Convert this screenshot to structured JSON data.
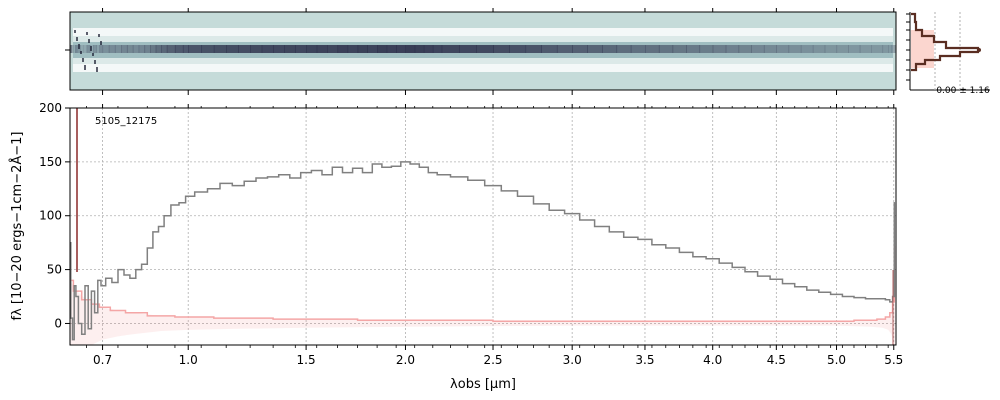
{
  "chart_data": [
    {
      "type": "heatmap",
      "panel": "2d-spectrum",
      "colors": {
        "background": "#c5dbd9",
        "core": "#2c2f4a",
        "mid": "#6f9aa1",
        "light": "#f4f8f8",
        "dark_pixel": "#1a1c30"
      }
    },
    {
      "type": "line",
      "panel": "cross-dispersion-profile",
      "annotation": "0.00 ± 1.16",
      "colors": {
        "profile": "#5a2e22",
        "fill": "#f7b5a8"
      }
    },
    {
      "type": "line",
      "panel": "1d-spectrum",
      "label": "5105_12175",
      "xlabel": "λobs [μm]",
      "ylabel": "fλ [10−20 ergs−1cm−2Å−1]",
      "ylim": [
        -20,
        200
      ],
      "yticks": [
        0,
        50,
        100,
        150,
        200
      ],
      "xticks": [
        "0.7",
        "1.0",
        "1.5",
        "2.0",
        "2.5",
        "3.0",
        "3.5",
        "4.0",
        "4.5",
        "5.0",
        "5.5"
      ],
      "x_scale": "sqrt",
      "grid": true,
      "colors": {
        "spectrum": "#808080",
        "error": "#f4a6a6",
        "edge": "#8b2a2a"
      },
      "series": [
        {
          "role": "flux",
          "x": [
            0.6,
            0.605,
            0.61,
            0.615,
            0.62,
            0.63,
            0.64,
            0.65,
            0.66,
            0.67,
            0.68,
            0.69,
            0.7,
            0.72,
            0.74,
            0.76,
            0.78,
            0.8,
            0.82,
            0.84,
            0.86,
            0.88,
            0.9,
            0.92,
            0.95,
            0.98,
            1.0,
            1.05,
            1.1,
            1.15,
            1.2,
            1.25,
            1.3,
            1.35,
            1.4,
            1.45,
            1.5,
            1.55,
            1.6,
            1.65,
            1.7,
            1.75,
            1.8,
            1.85,
            1.9,
            1.95,
            2.0,
            2.05,
            2.1,
            2.15,
            2.2,
            2.3,
            2.4,
            2.5,
            2.6,
            2.7,
            2.8,
            2.9,
            3.0,
            3.1,
            3.2,
            3.3,
            3.4,
            3.5,
            3.6,
            3.7,
            3.8,
            3.9,
            4.0,
            4.1,
            4.2,
            4.3,
            4.4,
            4.5,
            4.6,
            4.7,
            4.8,
            4.9,
            5.0,
            5.1,
            5.2,
            5.3,
            5.4,
            5.45,
            5.48,
            5.5,
            5.51
          ],
          "y": [
            75,
            5,
            -15,
            35,
            25,
            0,
            -10,
            35,
            -5,
            30,
            10,
            40,
            35,
            42,
            38,
            50,
            45,
            42,
            50,
            55,
            70,
            85,
            90,
            100,
            110,
            112,
            118,
            122,
            125,
            130,
            128,
            132,
            135,
            136,
            138,
            135,
            140,
            142,
            138,
            145,
            140,
            144,
            140,
            148,
            145,
            146,
            150,
            148,
            145,
            140,
            138,
            136,
            133,
            128,
            123,
            118,
            111,
            105,
            102,
            96,
            90,
            85,
            80,
            78,
            73,
            70,
            66,
            62,
            60,
            56,
            52,
            48,
            44,
            41,
            37,
            34,
            31,
            29,
            27,
            25,
            24,
            23,
            23,
            22,
            20,
            25,
            112
          ]
        },
        {
          "role": "uncertainty",
          "x": [
            0.6,
            0.62,
            0.65,
            0.68,
            0.7,
            0.75,
            0.8,
            0.9,
            1.0,
            1.2,
            1.5,
            2.0,
            3.0,
            4.0,
            5.0,
            5.3,
            5.4,
            5.45,
            5.48,
            5.5,
            5.51
          ],
          "y": [
            40,
            30,
            22,
            18,
            15,
            12,
            10,
            7,
            6,
            5,
            4,
            3,
            2,
            2,
            2,
            3,
            4,
            6,
            10,
            20,
            72
          ]
        }
      ]
    }
  ]
}
